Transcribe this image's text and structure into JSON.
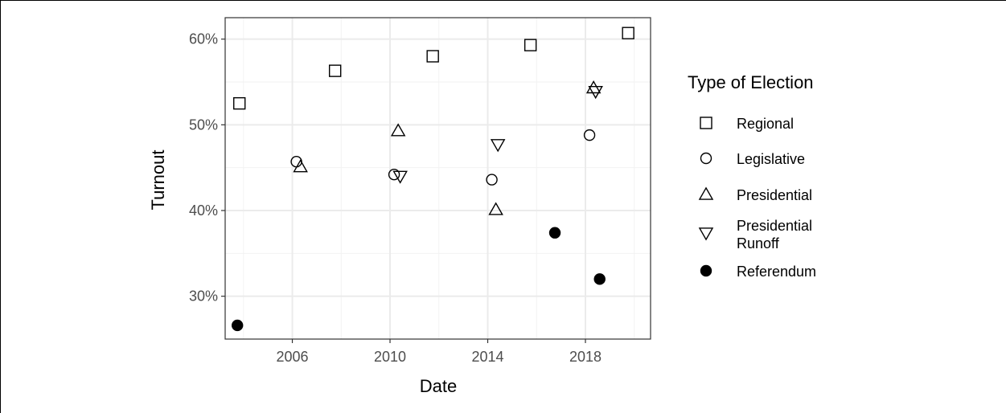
{
  "chart_data": {
    "type": "scatter",
    "xlabel": "Date",
    "ylabel": "Turnout",
    "x_ticks": [
      "2006",
      "2010",
      "2014",
      "2018"
    ],
    "y_ticks": [
      "30%",
      "40%",
      "50%",
      "60%"
    ],
    "x_range": [
      "2003-04-01",
      "2020-09-01"
    ],
    "ylim": [
      25,
      62.5
    ],
    "grid": true,
    "legend": {
      "title": "Type of Election",
      "placement": "right",
      "entries": [
        {
          "name": "Regional",
          "shape": "square-open"
        },
        {
          "name": "Legislative",
          "shape": "circle-open"
        },
        {
          "name": "Presidential",
          "shape": "triangle-up-open"
        },
        {
          "name": "Presidential\nRunoff",
          "shape": "triangle-down-open"
        },
        {
          "name": "Referendum",
          "shape": "circle-filled"
        }
      ]
    },
    "series": [
      {
        "name": "Regional",
        "points": [
          {
            "x": "2003-11-01",
            "y": 52.5
          },
          {
            "x": "2007-10-01",
            "y": 56.3
          },
          {
            "x": "2011-10-01",
            "y": 58.0
          },
          {
            "x": "2015-10-01",
            "y": 59.3
          },
          {
            "x": "2019-10-01",
            "y": 60.7
          }
        ]
      },
      {
        "name": "Legislative",
        "points": [
          {
            "x": "2006-03-01",
            "y": 45.7
          },
          {
            "x": "2010-03-01",
            "y": 44.2
          },
          {
            "x": "2014-03-01",
            "y": 43.6
          },
          {
            "x": "2018-03-01",
            "y": 48.8
          }
        ]
      },
      {
        "name": "Presidential",
        "points": [
          {
            "x": "2006-05-01",
            "y": 45.1
          },
          {
            "x": "2010-05-01",
            "y": 49.3
          },
          {
            "x": "2014-05-01",
            "y": 40.1
          },
          {
            "x": "2018-05-01",
            "y": 54.3
          }
        ]
      },
      {
        "name": "Presidential Runoff",
        "points": [
          {
            "x": "2010-06-01",
            "y": 44.0
          },
          {
            "x": "2014-06-01",
            "y": 47.7
          },
          {
            "x": "2018-06-01",
            "y": 53.9
          }
        ]
      },
      {
        "name": "Referendum",
        "points": [
          {
            "x": "2003-10-01",
            "y": 26.6
          },
          {
            "x": "2016-10-01",
            "y": 37.4
          },
          {
            "x": "2018-08-01",
            "y": 32.0
          }
        ]
      }
    ]
  }
}
